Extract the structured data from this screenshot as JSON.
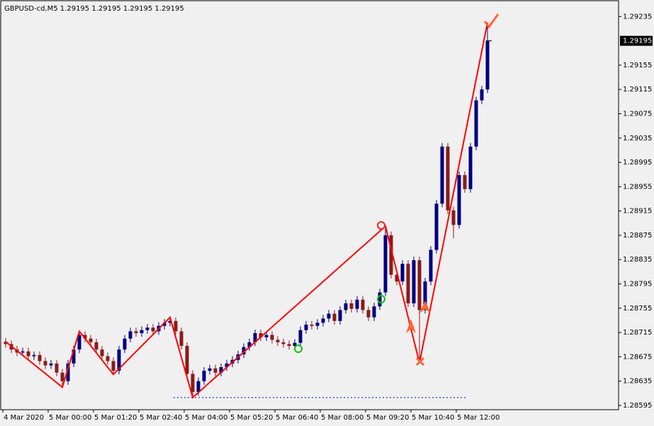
{
  "chart_data": {
    "type": "candlestick",
    "title": "GBPUSD-cd,M5  1.29195 1.29195 1.29195 1.29195",
    "current_price": {
      "value": 1.29195,
      "label": "1.29195"
    },
    "bull_color": "#000080",
    "bear_color": "#8b1a1a",
    "categories": [
      "4 Mar 2020",
      null,
      null,
      null,
      null,
      null,
      null,
      null,
      "5 Mar 00:00",
      null,
      null,
      null,
      null,
      null,
      null,
      null,
      "5 Mar 01:20",
      null,
      null,
      null,
      null,
      null,
      null,
      null,
      "5 Mar 02:40",
      null,
      null,
      null,
      null,
      null,
      null,
      null,
      "5 Mar 04:00",
      null,
      null,
      null,
      null,
      null,
      null,
      null,
      "5 Mar 05:20",
      null,
      null,
      null,
      null,
      null,
      null,
      null,
      "5 Mar 06:40",
      null,
      null,
      null,
      null,
      null,
      null,
      null,
      "5 Mar 08:00",
      null,
      null,
      null,
      null,
      null,
      null,
      null,
      "5 Mar 09:20",
      null,
      null,
      null,
      null,
      null,
      null,
      null,
      "5 Mar 10:40",
      null,
      null,
      null,
      null,
      null,
      null,
      null,
      "5 Mar 12:00",
      null,
      null,
      null,
      null,
      null
    ],
    "open": [
      1.287,
      1.28696,
      1.28687,
      1.28682,
      1.28684,
      1.28676,
      1.28678,
      1.28668,
      1.28661,
      1.28664,
      1.28649,
      1.28635,
      1.28664,
      1.28687,
      1.28711,
      1.28705,
      1.28699,
      1.28687,
      1.28676,
      1.28668,
      1.28652,
      1.28687,
      1.28705,
      1.28717,
      1.28714,
      1.28719,
      1.28723,
      1.28717,
      1.28726,
      1.28731,
      1.28734,
      1.28717,
      1.28693,
      1.28647,
      1.28617,
      1.28635,
      1.28652,
      1.28656,
      1.28649,
      1.28658,
      1.28664,
      1.2867,
      1.28679,
      1.28691,
      1.28699,
      1.28714,
      1.28707,
      1.28711,
      1.28703,
      1.28699,
      1.28696,
      1.28693,
      1.28698,
      1.28719,
      1.28728,
      1.28726,
      1.28731,
      1.28738,
      1.28746,
      1.28734,
      1.28752,
      1.28763,
      1.28754,
      1.28769,
      1.28752,
      1.2874,
      1.28758,
      1.28781,
      1.28875,
      1.2881,
      1.28799,
      1.28828,
      1.28763,
      1.28834,
      1.28752,
      1.28799,
      1.28851,
      1.28927,
      1.29021,
      1.28916,
      1.28892,
      1.28974,
      1.28951,
      1.29021,
      1.29097,
      1.29115
    ],
    "high": [
      1.28706,
      1.28702,
      1.28693,
      1.2869,
      1.2869,
      1.28684,
      1.28684,
      1.28674,
      1.2867,
      1.2867,
      1.28655,
      1.2867,
      1.28693,
      1.28717,
      1.28717,
      1.28711,
      1.28705,
      1.28693,
      1.28682,
      1.28674,
      1.28693,
      1.28711,
      1.28723,
      1.28723,
      1.28725,
      1.28729,
      1.28729,
      1.28732,
      1.28737,
      1.2874,
      1.2874,
      1.28723,
      1.28699,
      1.28653,
      1.28641,
      1.28658,
      1.28662,
      1.28662,
      1.28664,
      1.2867,
      1.28676,
      1.28685,
      1.28697,
      1.28705,
      1.2872,
      1.2872,
      1.28717,
      1.28717,
      1.28709,
      1.28705,
      1.28702,
      1.28704,
      1.28725,
      1.28734,
      1.28734,
      1.28737,
      1.28744,
      1.28752,
      1.28752,
      1.28758,
      1.28769,
      1.28769,
      1.28775,
      1.28775,
      1.28758,
      1.28764,
      1.28787,
      1.2889,
      1.28881,
      1.28816,
      1.28834,
      1.28834,
      1.2884,
      1.2884,
      1.28805,
      1.28857,
      1.28933,
      1.29027,
      1.29027,
      1.28922,
      1.2898,
      1.2898,
      1.29027,
      1.29103,
      1.29121,
      1.29225
    ],
    "low": [
      1.2869,
      1.28681,
      1.28676,
      1.28676,
      1.2867,
      1.2867,
      1.28662,
      1.28655,
      1.28655,
      1.28643,
      1.28625,
      1.28629,
      1.28658,
      1.28681,
      1.28699,
      1.28693,
      1.28681,
      1.2867,
      1.28662,
      1.28646,
      1.28646,
      1.28681,
      1.28699,
      1.28708,
      1.28708,
      1.28713,
      1.28711,
      1.28711,
      1.2872,
      1.28725,
      1.28711,
      1.28687,
      1.28641,
      1.28608,
      1.28611,
      1.28629,
      1.28646,
      1.28643,
      1.28643,
      1.28652,
      1.28658,
      1.28664,
      1.28673,
      1.28685,
      1.28693,
      1.28701,
      1.28701,
      1.28697,
      1.28693,
      1.2869,
      1.28687,
      1.28687,
      1.28692,
      1.28713,
      1.2872,
      1.2872,
      1.28725,
      1.28732,
      1.28728,
      1.28728,
      1.28746,
      1.28748,
      1.28748,
      1.28746,
      1.28734,
      1.28734,
      1.28752,
      1.28775,
      1.28804,
      1.28793,
      1.28793,
      1.28757,
      1.28757,
      1.28665,
      1.28746,
      1.28793,
      1.28845,
      1.28921,
      1.2891,
      1.2887,
      1.28886,
      1.28945,
      1.28945,
      1.29015,
      1.29091,
      1.29109
    ],
    "close": [
      1.28696,
      1.28687,
      1.28682,
      1.28684,
      1.28676,
      1.28678,
      1.28668,
      1.28661,
      1.28664,
      1.28649,
      1.28635,
      1.28664,
      1.28687,
      1.28711,
      1.28705,
      1.28699,
      1.28687,
      1.28676,
      1.28668,
      1.28652,
      1.28687,
      1.28705,
      1.28717,
      1.28714,
      1.28719,
      1.28723,
      1.28717,
      1.28726,
      1.28731,
      1.28734,
      1.28717,
      1.28693,
      1.28647,
      1.28617,
      1.28635,
      1.28652,
      1.28656,
      1.28649,
      1.28658,
      1.28664,
      1.2867,
      1.28679,
      1.28691,
      1.28699,
      1.28714,
      1.28707,
      1.28711,
      1.28703,
      1.28699,
      1.28696,
      1.28693,
      1.28698,
      1.28719,
      1.28728,
      1.28726,
      1.28731,
      1.28738,
      1.28746,
      1.28734,
      1.28752,
      1.28763,
      1.28754,
      1.28769,
      1.28752,
      1.2874,
      1.28758,
      1.28781,
      1.28875,
      1.2881,
      1.28799,
      1.28828,
      1.28763,
      1.28834,
      1.28752,
      1.28799,
      1.28851,
      1.28927,
      1.29021,
      1.28916,
      1.28892,
      1.28974,
      1.28951,
      1.29021,
      1.29097,
      1.29115,
      1.29195
    ],
    "zigzag": {
      "color": "#ff0000",
      "x": [
        0,
        10,
        13,
        19,
        29,
        33,
        67,
        73,
        85
      ],
      "y": [
        1.287,
        1.28625,
        1.28717,
        1.28646,
        1.2874,
        1.28608,
        1.2889,
        1.28665,
        1.29225
      ]
    },
    "support_line": {
      "value": 1.28608,
      "color": "#0000cc"
    },
    "ylim": [
      1.28588,
      1.29261
    ],
    "yticks": [
      1.28595,
      1.28635,
      1.28675,
      1.28715,
      1.28755,
      1.28795,
      1.28835,
      1.28875,
      1.28915,
      1.28955,
      1.28995,
      1.29035,
      1.29075,
      1.29115,
      1.29155,
      1.29235
    ]
  }
}
